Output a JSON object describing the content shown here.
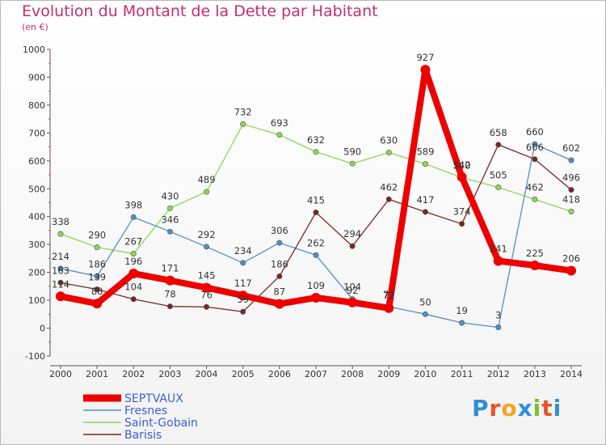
{
  "header": {
    "title": "Evolution du Montant de la Dette par Habitant",
    "subtitle": "(en €)"
  },
  "logo": {
    "text": "Proxiti",
    "colors": [
      "#2f8fd8",
      "#e8542a",
      "#f4a51d",
      "#2f8fd8",
      "#7bbf2a",
      "#e8542a",
      "#2f8fd8"
    ]
  },
  "chart_data": {
    "type": "line",
    "title": "Evolution du Montant de la Dette par Habitant",
    "subtitle": "(en €)",
    "x": [
      "2000",
      "2001",
      "2002",
      "2003",
      "2004",
      "2005",
      "2006",
      "2007",
      "2008",
      "2009",
      "2010",
      "2011",
      "2012",
      "2013",
      "2014"
    ],
    "ylim": [
      -100,
      1000
    ],
    "yticks": [
      -100,
      0,
      100,
      200,
      300,
      400,
      500,
      600,
      700,
      800,
      900,
      1000
    ],
    "grid": false,
    "legend_position": "bottom-left",
    "series": [
      {
        "name": "Saint-Gobain",
        "color": "#8ed65a",
        "values": [
          338,
          290,
          267,
          430,
          489,
          732,
          693,
          632,
          590,
          630,
          589,
          540,
          505,
          462,
          418
        ],
        "labels": [
          "338",
          "290",
          "267",
          "430",
          "489",
          "732",
          "693",
          "632",
          "590",
          "630",
          "589",
          "540",
          "505",
          "462",
          "418"
        ]
      },
      {
        "name": "Fresnes",
        "color": "#4f8fc8",
        "values": [
          214,
          186,
          398,
          346,
          292,
          234,
          306,
          262,
          104,
          77,
          50,
          19,
          3,
          660,
          602
        ],
        "labels": [
          "214",
          "186",
          "398",
          "346",
          "292",
          "234",
          "306",
          "262",
          "104",
          "77",
          "50",
          "19",
          "3",
          "660",
          "602"
        ]
      },
      {
        "name": "Barisis",
        "color": "#7a2626",
        "values": [
          163,
          139,
          104,
          78,
          76,
          59,
          186,
          415,
          294,
          462,
          417,
          374,
          658,
          606,
          496
        ],
        "labels": [
          "163",
          "139",
          "104",
          "78",
          "76",
          "59",
          "186",
          "415",
          "294",
          "462",
          "417",
          "374",
          "658",
          "606",
          "496"
        ]
      },
      {
        "name": "SEPTVAUX",
        "color": "#ee0000",
        "values": [
          114,
          88,
          196,
          171,
          145,
          117,
          87,
          109,
          92,
          72,
          927,
          542,
          241,
          225,
          206
        ],
        "labels": [
          "114",
          "88",
          "196",
          "171",
          "145",
          "117",
          "87",
          "109",
          "92",
          "72",
          "927",
          "542",
          "241",
          "225",
          "206"
        ]
      }
    ],
    "legend_order": [
      "SEPTVAUX",
      "Fresnes",
      "Saint-Gobain",
      "Barisis"
    ],
    "legend_text_color": "#3b5fd8"
  }
}
